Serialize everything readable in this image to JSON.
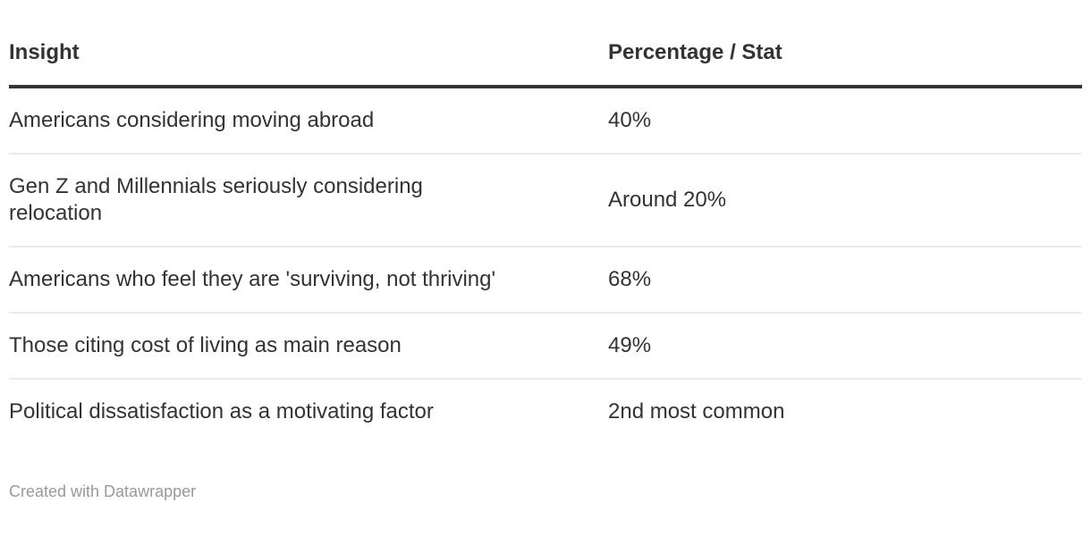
{
  "chart_data": {
    "type": "table",
    "columns": [
      "Insight",
      "Percentage / Stat"
    ],
    "rows": [
      [
        "Americans considering moving abroad",
        "40%"
      ],
      [
        "Gen Z and Millennials seriously considering relocation",
        "Around 20%"
      ],
      [
        "Americans who feel they are 'surviving, not thriving'",
        "68%"
      ],
      [
        "Those citing cost of living as main reason",
        "49%"
      ],
      [
        "Political dissatisfaction as a motivating factor",
        "2nd most common"
      ]
    ]
  },
  "footer": {
    "attribution": "Created with Datawrapper"
  },
  "colors": {
    "text": "#333333",
    "header_rule": "#333333",
    "row_divider": "#ebebeb",
    "attribution_text": "#999999",
    "background": "#ffffff"
  }
}
